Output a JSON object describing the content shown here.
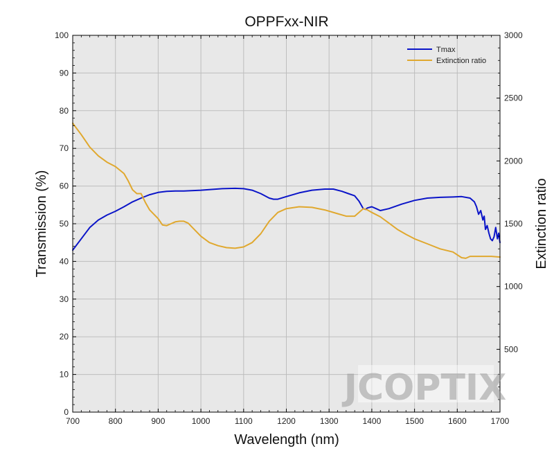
{
  "chart_data": {
    "type": "line",
    "title": "OPPFxx-NIR",
    "xlabel": "Wavelength (nm)",
    "ylabel": "Transmission (%)",
    "y2label": "Extinction ratio",
    "xlim": [
      700,
      1700
    ],
    "ylim": [
      0,
      100
    ],
    "y2lim": [
      0,
      3000
    ],
    "xticks": [
      700,
      800,
      900,
      1000,
      1100,
      1200,
      1300,
      1400,
      1500,
      1600,
      1700
    ],
    "yticks": [
      0,
      10,
      20,
      30,
      40,
      50,
      60,
      70,
      80,
      90,
      100
    ],
    "y2ticks": [
      500,
      1000,
      1500,
      2000,
      2500,
      3000
    ],
    "grid": true,
    "legend_position": "top-right",
    "series": [
      {
        "name": "Tmax",
        "axis": "left",
        "color": "#0a14c8",
        "x": [
          700,
          720,
          740,
          760,
          780,
          800,
          820,
          840,
          860,
          880,
          900,
          920,
          940,
          960,
          1000,
          1050,
          1080,
          1100,
          1120,
          1140,
          1160,
          1170,
          1180,
          1200,
          1230,
          1260,
          1290,
          1310,
          1330,
          1345,
          1360,
          1370,
          1380,
          1385,
          1390,
          1400,
          1410,
          1420,
          1440,
          1470,
          1500,
          1530,
          1560,
          1590,
          1610,
          1630,
          1640,
          1645,
          1650,
          1655,
          1660,
          1663,
          1666,
          1670,
          1674,
          1678,
          1682,
          1686,
          1690,
          1694,
          1697,
          1700
        ],
        "y": [
          43,
          46,
          49,
          51,
          52.3,
          53.3,
          54.5,
          55.8,
          56.8,
          57.7,
          58.3,
          58.6,
          58.7,
          58.7,
          58.9,
          59.3,
          59.4,
          59.3,
          58.9,
          58.0,
          56.8,
          56.5,
          56.5,
          57.2,
          58.2,
          58.9,
          59.2,
          59.2,
          58.6,
          58.0,
          57.4,
          56.0,
          54.0,
          53.8,
          54.2,
          54.5,
          54.0,
          53.5,
          54.0,
          55.2,
          56.2,
          56.8,
          57.0,
          57.1,
          57.2,
          56.8,
          55.8,
          54.5,
          52.5,
          53.5,
          51.0,
          52.0,
          48.5,
          49.5,
          47.5,
          46.0,
          45.5,
          46.5,
          49.0,
          46.0,
          47.5,
          45.0
        ]
      },
      {
        "name": "Extinction ratio",
        "axis": "right",
        "color": "#e0a82e",
        "x": [
          700,
          720,
          740,
          760,
          780,
          800,
          820,
          830,
          840,
          850,
          860,
          870,
          880,
          900,
          910,
          920,
          930,
          940,
          950,
          960,
          970,
          980,
          1000,
          1020,
          1040,
          1060,
          1080,
          1100,
          1120,
          1140,
          1160,
          1180,
          1200,
          1230,
          1260,
          1290,
          1320,
          1340,
          1360,
          1380,
          1390,
          1400,
          1420,
          1440,
          1460,
          1480,
          1500,
          1530,
          1560,
          1590,
          1610,
          1620,
          1630,
          1650,
          1680,
          1700
        ],
        "y": [
          2300,
          2210,
          2110,
          2040,
          1990,
          1955,
          1900,
          1840,
          1770,
          1740,
          1740,
          1670,
          1610,
          1540,
          1490,
          1485,
          1500,
          1515,
          1520,
          1520,
          1505,
          1470,
          1400,
          1350,
          1325,
          1310,
          1305,
          1315,
          1350,
          1420,
          1520,
          1590,
          1620,
          1635,
          1630,
          1610,
          1580,
          1560,
          1560,
          1620,
          1610,
          1590,
          1555,
          1505,
          1455,
          1415,
          1380,
          1340,
          1300,
          1275,
          1230,
          1225,
          1240,
          1240,
          1240,
          1235
        ]
      }
    ]
  },
  "watermark": {
    "text": "JCOPTIX",
    "color": "#9a9a9a"
  },
  "colors": {
    "plot_background": "#e8e8e8",
    "grid": "#bdbdbd"
  }
}
